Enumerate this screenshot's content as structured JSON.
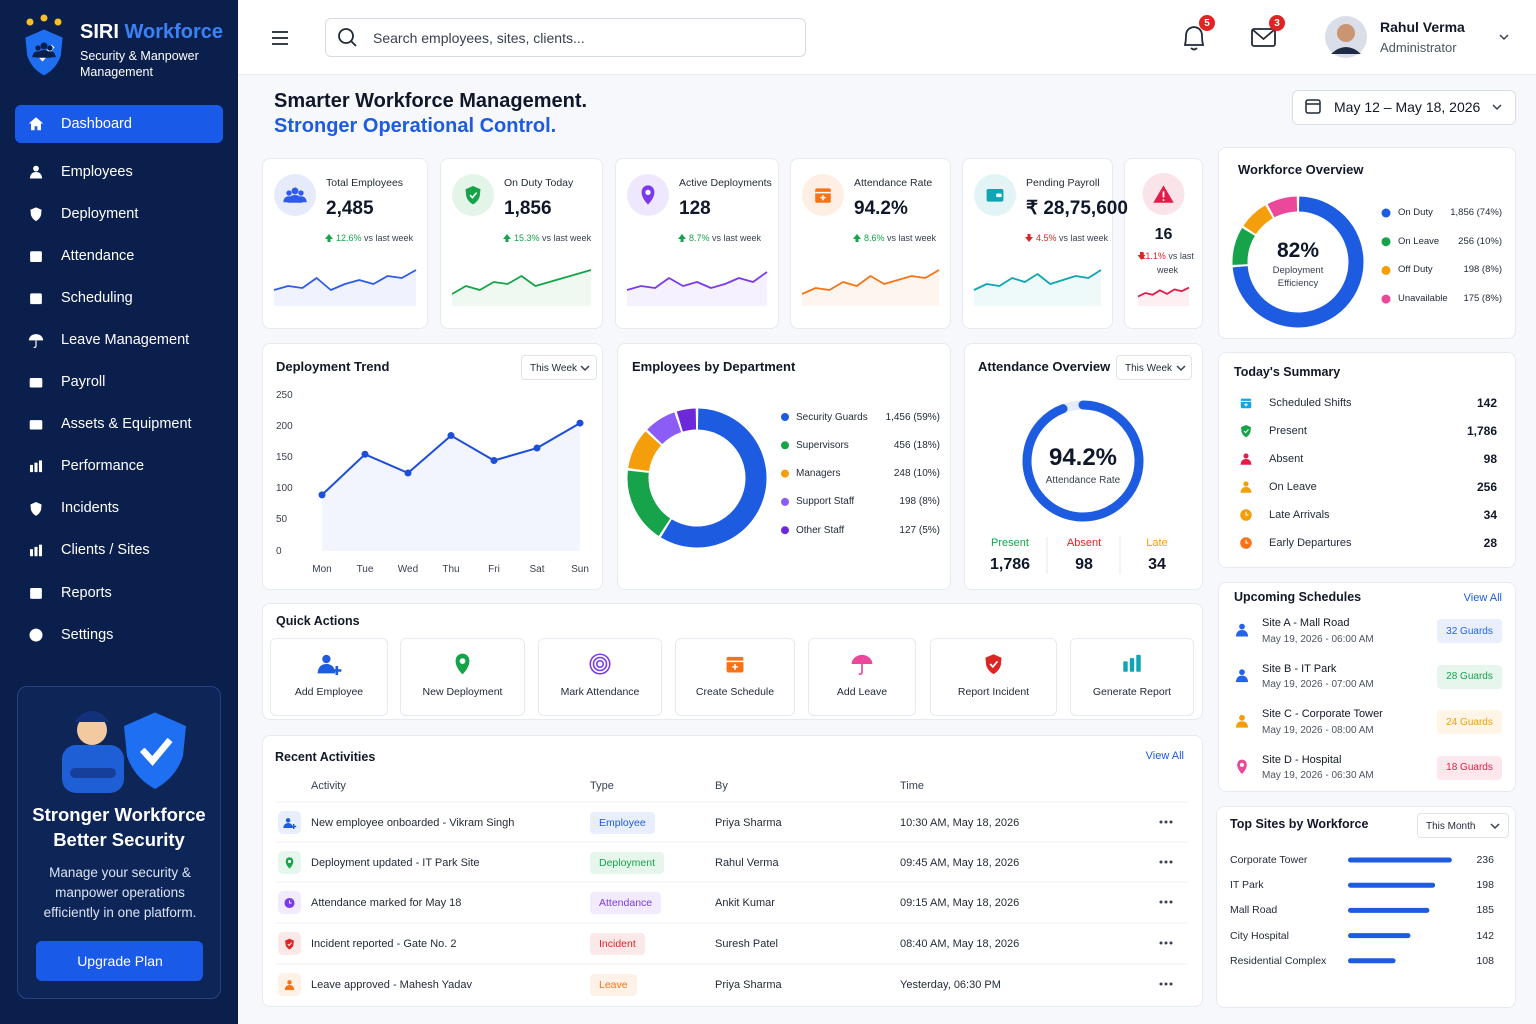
{
  "brand": {
    "name": "SIRI",
    "name_accent": "Workforce",
    "tagline": "Security & Manpower Management"
  },
  "nav": {
    "active": 0,
    "items": [
      "Dashboard",
      "Employees",
      "Deployment",
      "Attendance",
      "Scheduling",
      "Leave Management",
      "Payroll",
      "Assets & Equipment",
      "Performance",
      "Incidents",
      "Clients / Sites",
      "Reports",
      "Settings"
    ]
  },
  "promo": {
    "title": [
      "Stronger Workforce",
      "Better Security"
    ],
    "text": "Manage your security & manpower operations efficiently in one platform.",
    "button": "Upgrade Plan"
  },
  "topbar": {
    "search_placeholder": "Search employees, sites, clients...",
    "notifications": 5,
    "messages": 3,
    "user": {
      "name": "Rahul Verma",
      "role": "Administrator"
    }
  },
  "header": {
    "title": "Smarter Workforce Management.",
    "subtitle": "Stronger Operational Control.",
    "date_range": "May 12 – May 18, 2026"
  },
  "kpi_change_suffix": "vs last week",
  "sparkline_ylim": [
    0,
    10
  ],
  "kpis": [
    {
      "label": "Total Employees",
      "value": "2,485",
      "change": "12.6%",
      "trend": "up",
      "color": "#2f5bea",
      "sparkline": [
        3,
        4,
        3.5,
        6,
        3,
        4.5,
        5.5,
        4.5,
        6.5,
        6,
        8
      ]
    },
    {
      "label": "On Duty Today",
      "value": "1,856",
      "change": "15.3%",
      "trend": "up",
      "color": "#16a34a",
      "sparkline": [
        2,
        4,
        3,
        5,
        4.5,
        6.5,
        4,
        5,
        6,
        7,
        8
      ]
    },
    {
      "label": "Active Deployments",
      "value": "128",
      "change": "8.7%",
      "trend": "up",
      "color": "#7c3aed",
      "sparkline": [
        3,
        4,
        3.5,
        6,
        4,
        5,
        3.5,
        4.5,
        6,
        5,
        7.5
      ]
    },
    {
      "label": "Attendance Rate",
      "value": "94.2%",
      "change": "8.6%",
      "trend": "up",
      "color": "#f97316",
      "sparkline": [
        2,
        3.5,
        3,
        5,
        4,
        6.5,
        4.5,
        5.5,
        6.5,
        6,
        8
      ]
    },
    {
      "label": "Pending Payroll",
      "value": "₹ 28,75,600",
      "change": "4.5%",
      "trend": "down",
      "color": "#0fa5b5",
      "sparkline": [
        3,
        4.5,
        4,
        6,
        5,
        7,
        4.5,
        5.5,
        6.5,
        6,
        8
      ]
    },
    {
      "value": "16",
      "change": "11.1%",
      "trend": "down",
      "color": "#e11d48",
      "sparkline": [
        3,
        5,
        4,
        6.5,
        4.5,
        7,
        6,
        8
      ]
    }
  ],
  "workforce_overview": {
    "type": "pie",
    "title": "Workforce Overview",
    "center_value": "82%",
    "center_label": "Deployment Efficiency",
    "series": [
      {
        "name": "On Duty",
        "value": 74,
        "value_label": "1,856 (74%)",
        "color": "#1d5be0"
      },
      {
        "name": "On Leave",
        "value": 10,
        "value_label": "256 (10%)",
        "color": "#16a34a"
      },
      {
        "name": "Off Duty",
        "value": 8,
        "value_label": "198 (8%)",
        "color": "#f59e0b"
      },
      {
        "name": "Unavailable",
        "value": 8,
        "value_label": "175 (8%)",
        "color": "#ec4899"
      }
    ]
  },
  "deployment_trend": {
    "type": "line",
    "title": "Deployment Trend",
    "period": "This Week",
    "categories": [
      "Mon",
      "Tue",
      "Wed",
      "Thu",
      "Fri",
      "Sat",
      "Sun"
    ],
    "values": [
      90,
      155,
      125,
      185,
      145,
      165,
      205
    ],
    "ylim": [
      0,
      250
    ],
    "yticks": [
      0,
      50,
      100,
      150,
      200,
      250
    ],
    "color": "#1d4ed8"
  },
  "departments": {
    "type": "pie",
    "title": "Employees by Department",
    "series": [
      {
        "name": "Security Guards",
        "value": 59,
        "value_label": "1,456 (59%)",
        "color": "#1d5be0"
      },
      {
        "name": "Supervisors",
        "value": 18,
        "value_label": "456 (18%)",
        "color": "#16a34a"
      },
      {
        "name": "Managers",
        "value": 10,
        "value_label": "248 (10%)",
        "color": "#f59e0b"
      },
      {
        "name": "Support Staff",
        "value": 8,
        "value_label": "198 (8%)",
        "color": "#8b5cf6"
      },
      {
        "name": "Other Staff",
        "value": 5,
        "value_label": "127 (5%)",
        "color": "#6d28d9"
      }
    ]
  },
  "attendance": {
    "type": "gauge",
    "title": "Attendance Overview",
    "period": "This Week",
    "value": 94.2,
    "value_label": "94.2%",
    "lim": [
      0,
      100
    ],
    "label": "Attendance Rate",
    "color": "#1d5be0",
    "stats": [
      {
        "name": "Present",
        "value": "1,786",
        "color": "#16a34a"
      },
      {
        "name": "Absent",
        "value": "98",
        "color": "#dc2626"
      },
      {
        "name": "Late",
        "value": "34",
        "color": "#f59e0b"
      }
    ]
  },
  "summary": {
    "title": "Today's Summary",
    "items": [
      {
        "label": "Scheduled Shifts",
        "value": "142",
        "color": "#0ea5e9"
      },
      {
        "label": "Present",
        "value": "1,786",
        "color": "#16a34a"
      },
      {
        "label": "Absent",
        "value": "98",
        "color": "#e11d48"
      },
      {
        "label": "On Leave",
        "value": "256",
        "color": "#f59e0b"
      },
      {
        "label": "Late Arrivals",
        "value": "34",
        "color": "#f59e0b"
      },
      {
        "label": "Early Departures",
        "value": "28",
        "color": "#f97316"
      }
    ]
  },
  "schedules": {
    "title": "Upcoming Schedules",
    "view_all": "View All",
    "items": [
      {
        "site": "Site A - Mall Road",
        "time": "May 19, 2026 - 06:00 AM",
        "guards": "32 Guards",
        "color": "#2563eb",
        "icon_color": "#2563eb"
      },
      {
        "site": "Site B - IT Park",
        "time": "May 19, 2026 - 07:00 AM",
        "guards": "28 Guards",
        "color": "#16a34a",
        "icon_color": "#2563eb"
      },
      {
        "site": "Site C - Corporate Tower",
        "time": "May 19, 2026 - 08:00 AM",
        "guards": "24 Guards",
        "color": "#f59e0b",
        "icon_color": "#f59e0b"
      },
      {
        "site": "Site D - Hospital",
        "time": "May 19, 2026 - 06:30 AM",
        "guards": "18 Guards",
        "color": "#e11d48",
        "icon_color": "#ec4899"
      }
    ]
  },
  "top_sites": {
    "type": "bar",
    "title": "Top Sites by Workforce",
    "period": "This Month",
    "categories": [
      "Corporate Tower",
      "IT Park",
      "Mall Road",
      "City Hospital",
      "Residential Complex"
    ],
    "values": [
      236,
      198,
      185,
      142,
      108
    ],
    "xlim": [
      0,
      250
    ],
    "color": "#1d5be0"
  },
  "quick_actions": {
    "title": "Quick Actions",
    "items": [
      {
        "label": "Add Employee",
        "color": "#1d5be0"
      },
      {
        "label": "New Deployment",
        "color": "#16a34a"
      },
      {
        "label": "Mark Attendance",
        "color": "#7c3aed"
      },
      {
        "label": "Create Schedule",
        "color": "#f97316"
      },
      {
        "label": "Add Leave",
        "color": "#ec4899"
      },
      {
        "label": "Report Incident",
        "color": "#dc2626"
      },
      {
        "label": "Generate Report",
        "color": "#0fa5b5"
      }
    ]
  },
  "activities": {
    "title": "Recent Activities",
    "view_all": "View All",
    "columns": [
      "Activity",
      "Type",
      "By",
      "Time"
    ],
    "rows": [
      {
        "activity": "New employee onboarded - Vikram Singh",
        "type": "Employee",
        "by": "Priya Sharma",
        "time": "10:30 AM, May 18, 2026",
        "color": "#1d5be0"
      },
      {
        "activity": "Deployment updated - IT Park Site",
        "type": "Deployment",
        "by": "Rahul Verma",
        "time": "09:45 AM, May 18, 2026",
        "color": "#16a34a"
      },
      {
        "activity": "Attendance marked for May 18",
        "type": "Attendance",
        "by": "Ankit Kumar",
        "time": "09:15 AM, May 18, 2026",
        "color": "#7c3aed"
      },
      {
        "activity": "Incident reported - Gate No. 2",
        "type": "Incident",
        "by": "Suresh Patel",
        "time": "08:40 AM, May 18, 2026",
        "color": "#dc2626"
      },
      {
        "activity": "Leave approved - Mahesh Yadav",
        "type": "Leave",
        "by": "Priya Sharma",
        "time": "Yesterday, 06:30 PM",
        "color": "#f97316"
      }
    ]
  }
}
